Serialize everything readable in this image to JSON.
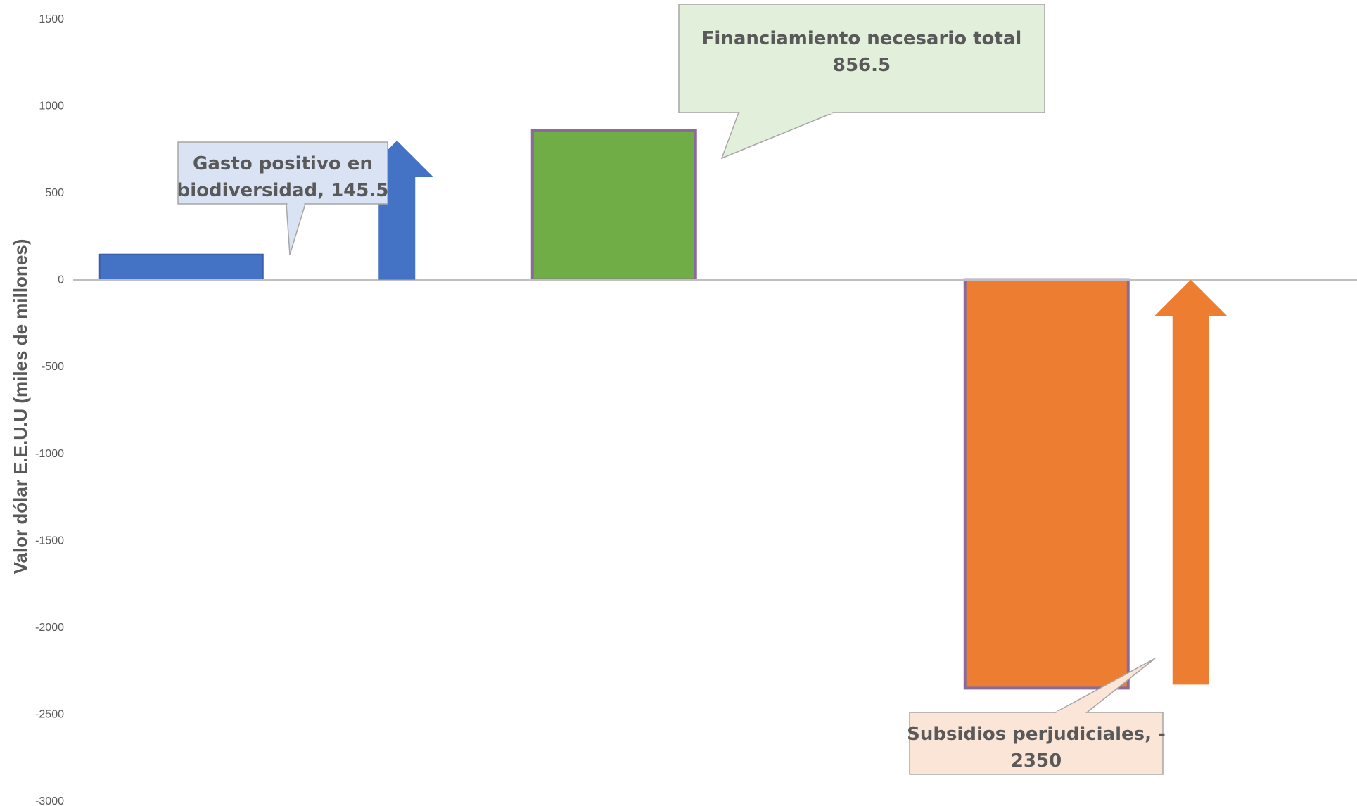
{
  "chart_data": {
    "type": "bar",
    "title": "",
    "xlabel": "",
    "ylabel": "Valor dólar E.E.U.U (miles de millones)",
    "ylim": [
      -3000,
      1500
    ],
    "yticks": [
      1500,
      1000,
      500,
      0,
      -500,
      -1000,
      -1500,
      -2000,
      -2500,
      -3000
    ],
    "grid": false,
    "legend": "none",
    "series": [
      {
        "label_line1": "Gasto positivo en",
        "label_line2": "biodiversidad, 145.5",
        "value": 145.5,
        "color": "#4472C4",
        "callout_fill": "#DAE3F3",
        "slot": 0
      },
      {
        "label_line1": "Financiamiento necesario total",
        "label_line2": "856.5",
        "value": 856.5,
        "color": "#70AD47",
        "callout_fill": "#E2EFDA",
        "slot": 2
      },
      {
        "label_line1": "Subsidios perjudiciales, -",
        "label_line2": "2350",
        "value": -2350,
        "color": "#ED7D31",
        "callout_fill": "#FBE5D6",
        "slot": 4
      }
    ],
    "arrows": [
      {
        "from": 0,
        "to": 800,
        "color": "#4472C4",
        "icon": "up-arrow-icon"
      },
      {
        "from": -2330,
        "to": 0,
        "color": "#ED7D31",
        "icon": "up-arrow-icon"
      }
    ]
  }
}
